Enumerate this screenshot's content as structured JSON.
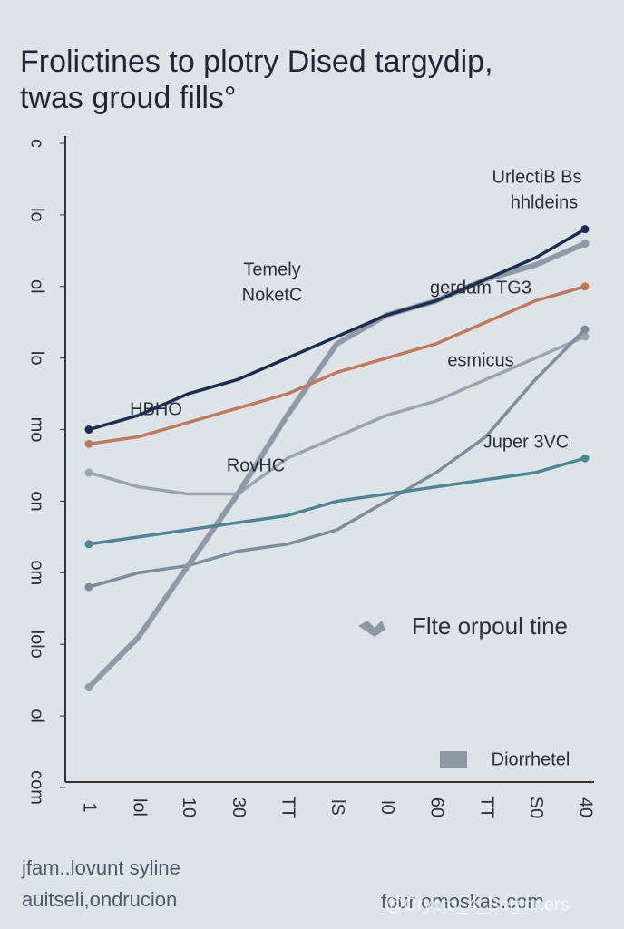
{
  "chart_data": {
    "type": "line",
    "title": [
      "Frolictines to plotry Dised targydip,",
      "twas groud fills°"
    ],
    "categories": [
      "1",
      "lol",
      "10",
      "30",
      "TT",
      "lS",
      "l0",
      "60",
      "TT",
      "S0",
      "40"
    ],
    "ylim": [
      0,
      90
    ],
    "yticks": [
      {
        "value": 0,
        "label": "com"
      },
      {
        "value": 10,
        "label": "ol"
      },
      {
        "value": 20,
        "label": "lolo"
      },
      {
        "value": 30,
        "label": "om"
      },
      {
        "value": 40,
        "label": "on"
      },
      {
        "value": 50,
        "label": "mo"
      },
      {
        "value": 60,
        "label": "lo"
      },
      {
        "value": 70,
        "label": "ol"
      },
      {
        "value": 80,
        "label": "lo"
      },
      {
        "value": 90,
        "label": "c"
      }
    ],
    "series": [
      {
        "color": "#9aa4ae",
        "values": [
          44,
          42,
          41,
          41,
          46,
          49,
          52,
          54,
          57,
          60,
          63
        ]
      },
      {
        "color": "#7f8c99",
        "values": [
          28,
          30,
          31,
          33,
          34,
          36,
          40,
          44,
          49,
          57,
          64
        ]
      },
      {
        "color": "#8f9aa6",
        "values": [
          14,
          21,
          31,
          41,
          52,
          62,
          66,
          68,
          71,
          73,
          76
        ]
      },
      {
        "color": "#4d8593",
        "values": [
          34,
          35,
          36,
          37,
          38,
          40,
          41,
          42,
          43,
          44,
          46
        ]
      },
      {
        "color": "#c0795a",
        "values": [
          48,
          49,
          51,
          53,
          55,
          58,
          60,
          62,
          65,
          68,
          70
        ]
      },
      {
        "color": "#1e2d4f",
        "values": [
          50,
          52,
          55,
          57,
          60,
          63,
          66,
          68,
          71,
          74,
          78
        ]
      }
    ],
    "annotations": [
      "UrlectiB Bs",
      "hhldeins",
      "Temely",
      "NoketC",
      "HBHO",
      "RovHC",
      "gerdam TG3",
      "esmicus",
      "Juper 3VC",
      "Flte orpoul tine",
      "Diorrhetel"
    ],
    "footer": [
      "jfam..lovunt syline",
      "auitseli,ondrucion"
    ],
    "source": "four omoskas.com",
    "watermark": "@Crypto_4_Beginners"
  }
}
